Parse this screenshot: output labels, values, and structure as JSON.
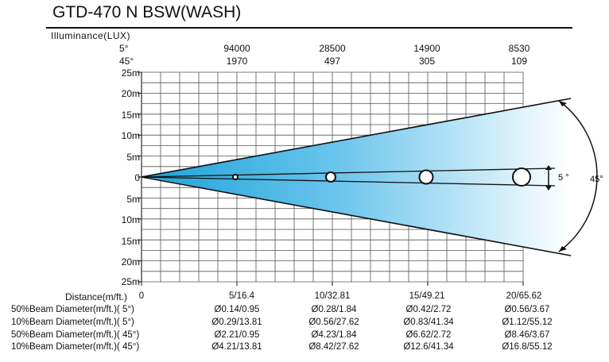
{
  "title": "GTD-470 N BSW(WASH)",
  "illuminance_label": "Illuminance(LUX)",
  "angle_labels": [
    "5°",
    "45°"
  ],
  "lux": [
    {
      "top": "94000",
      "bottom": "1970"
    },
    {
      "top": "28500",
      "bottom": "497"
    },
    {
      "top": "14900",
      "bottom": "305"
    },
    {
      "top": "8530",
      "bottom": "109"
    }
  ],
  "y_ticks": [
    "25m",
    "20m",
    "15m",
    "10m",
    "5m",
    "0",
    "5m",
    "10m",
    "15m",
    "20m",
    "25m"
  ],
  "distance_title": "Distance(m/ft.)",
  "distances": [
    "0",
    "5/16.4",
    "10/32.81",
    "15/49.21",
    "20/65.62"
  ],
  "beam_rows": [
    {
      "label": "50%Beam Diameter(m/ft.)(  5°)",
      "values": [
        "Ø0.14/0.95",
        "Ø0.28/1.84",
        "Ø0.42/2.72",
        "Ø0.56/3.67"
      ]
    },
    {
      "label": "10%Beam Diameter(m/ft.)(  5°)",
      "values": [
        "Ø0.29/13.81",
        "Ø0.56/27.62",
        "Ø0.83/41.34",
        "Ø1.12/55.12"
      ]
    },
    {
      "label": "50%Beam Diameter(m/ft.)( 45°)",
      "values": [
        "Ø2.21/0.95",
        "Ø4.23/1.84",
        "Ø6.62/2.72",
        "Ø8.46/3.67"
      ]
    },
    {
      "label": "10%Beam Diameter(m/ft.)( 45°)",
      "values": [
        "Ø4.21/13.81",
        "Ø8.42/27.62",
        "Ø12.6/41.34",
        "Ø16.8/55.12"
      ]
    }
  ],
  "annotations": {
    "narrow": "5  °",
    "wide": "45°"
  },
  "colors": {
    "beam_start": "#1da3d8",
    "beam_end": "#ffffff",
    "grid": "#555555",
    "axis": "#111111"
  },
  "chart_data": {
    "type": "beam-diagram",
    "title": "GTD-470 N BSW(WASH)",
    "xlabel": "Distance(m/ft.)",
    "ylabel": "Illuminance(LUX)",
    "xlim": [
      0,
      20
    ],
    "ylim": [
      -25,
      25
    ],
    "x": [
      5,
      10,
      15,
      20
    ],
    "series": [
      {
        "name": "5°",
        "values": [
          94000,
          28500,
          14900,
          8530
        ]
      },
      {
        "name": "45°",
        "values": [
          1970,
          497,
          305,
          109
        ]
      }
    ],
    "grid": true
  }
}
